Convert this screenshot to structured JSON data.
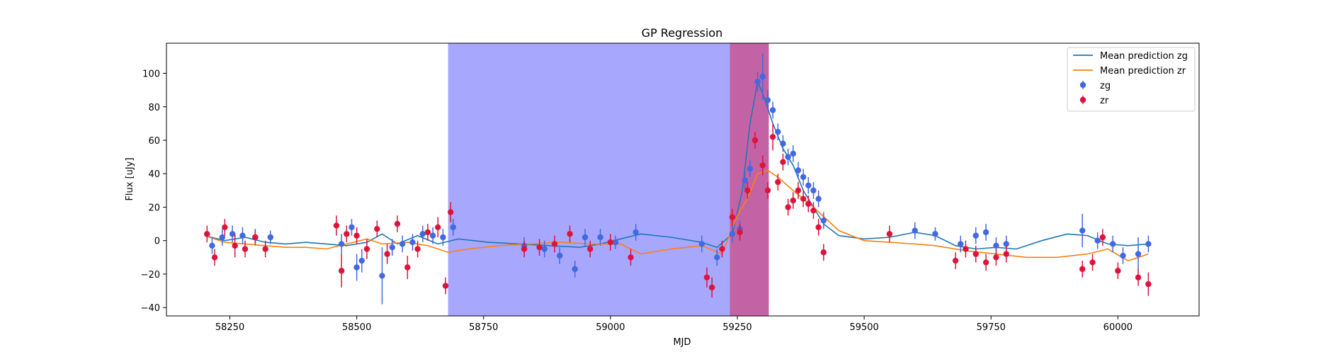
{
  "chart_data": {
    "type": "scatter",
    "title": "GP Regression",
    "xlabel": "MJD",
    "ylabel": "Flux [uJy]",
    "xlim": [
      58125,
      60160
    ],
    "ylim": [
      -45,
      118
    ],
    "xticks": [
      58250,
      58500,
      58750,
      59000,
      59250,
      59500,
      59750,
      60000
    ],
    "yticks": [
      -40,
      -20,
      0,
      20,
      40,
      60,
      80,
      100
    ],
    "grid": false,
    "legend_position": "top-right",
    "shaded_regions": [
      {
        "x_start": 58680,
        "x_end": 59235,
        "color": "#a7a7fd"
      },
      {
        "x_start": 59235,
        "x_end": 59312,
        "color": "#c363a5"
      }
    ],
    "series": [
      {
        "name": "Mean prediction zg",
        "kind": "line",
        "color": "#1f77b4",
        "x": [
          58200,
          58240,
          58280,
          58320,
          58360,
          58400,
          58440,
          58480,
          58520,
          58550,
          58580,
          58620,
          58660,
          58700,
          58760,
          58820,
          58880,
          58940,
          58980,
          59020,
          59060,
          59120,
          59180,
          59210,
          59240,
          59260,
          59275,
          59290,
          59300,
          59320,
          59340,
          59360,
          59380,
          59400,
          59420,
          59450,
          59500,
          59550,
          59600,
          59640,
          59680,
          59720,
          59760,
          59800,
          59850,
          59900,
          59940,
          59980,
          60020,
          60060
        ],
        "y": [
          3,
          0,
          2,
          -1,
          -2,
          -1,
          -2,
          -3,
          -1,
          4,
          -2,
          3,
          -2,
          1,
          -1,
          -2,
          -3,
          -4,
          -2,
          1,
          4,
          2,
          -1,
          -4,
          4,
          30,
          70,
          95,
          88,
          70,
          55,
          45,
          30,
          20,
          10,
          3,
          1,
          2,
          5,
          3,
          -3,
          -5,
          -4,
          -5,
          0,
          4,
          3,
          -2,
          -3,
          -2
        ]
      },
      {
        "name": "Mean prediction zr",
        "kind": "line",
        "color": "#ff7f0e",
        "x": [
          58200,
          58240,
          58280,
          58320,
          58360,
          58400,
          58440,
          58480,
          58520,
          58550,
          58600,
          58640,
          58680,
          58720,
          58780,
          58840,
          58900,
          58960,
          59020,
          59060,
          59120,
          59180,
          59220,
          59250,
          59270,
          59290,
          59310,
          59330,
          59360,
          59400,
          59450,
          59500,
          59550,
          59600,
          59640,
          59700,
          59760,
          59820,
          59880,
          59940,
          59980,
          60020,
          60060
        ],
        "y": [
          3,
          -1,
          -2,
          -3,
          -4,
          -4,
          -5,
          -2,
          1,
          -2,
          -1,
          -3,
          -7,
          -5,
          -3,
          -2,
          -1,
          -2,
          -2,
          -8,
          -5,
          -3,
          -8,
          15,
          25,
          40,
          42,
          38,
          30,
          20,
          6,
          0,
          -1,
          -2,
          -3,
          -6,
          -8,
          -10,
          -10,
          -8,
          -5,
          -12,
          -8
        ]
      },
      {
        "name": "zg",
        "kind": "errorbar",
        "color": "#4169e1",
        "x": [
          58215,
          58235,
          58255,
          58275,
          58300,
          58330,
          58470,
          58490,
          58500,
          58510,
          58550,
          58570,
          58590,
          58610,
          58630,
          58650,
          58670,
          58690,
          58830,
          58870,
          58900,
          58930,
          58950,
          58980,
          59010,
          59050,
          59180,
          59210,
          59240,
          59255,
          59265,
          59275,
          59290,
          59300,
          59310,
          59320,
          59330,
          59340,
          59350,
          59360,
          59370,
          59380,
          59390,
          59400,
          59410,
          59420,
          59600,
          59640,
          59690,
          59720,
          59740,
          59760,
          59780,
          59930,
          59960,
          59990,
          60010,
          60040,
          60060
        ],
        "y": [
          -3,
          2,
          4,
          3,
          2,
          2,
          -2,
          8,
          -16,
          -12,
          -21,
          -4,
          -2,
          -1,
          4,
          3,
          2,
          8,
          -3,
          -5,
          -9,
          -17,
          2,
          2,
          -1,
          5,
          -2,
          -10,
          4,
          7,
          36,
          43,
          95,
          98,
          84,
          78,
          65,
          58,
          50,
          52,
          42,
          38,
          33,
          30,
          25,
          12,
          6,
          4,
          -2,
          3,
          5,
          -3,
          -2,
          6,
          0,
          -2,
          -9,
          -8,
          -2
        ],
        "yerr": [
          5,
          5,
          5,
          5,
          5,
          4,
          6,
          5,
          8,
          7,
          17,
          5,
          5,
          5,
          5,
          5,
          5,
          5,
          5,
          5,
          5,
          5,
          5,
          5,
          4,
          5,
          5,
          5,
          5,
          5,
          5,
          5,
          6,
          14,
          6,
          5,
          5,
          5,
          5,
          5,
          5,
          5,
          5,
          5,
          5,
          5,
          5,
          4,
          5,
          5,
          5,
          5,
          5,
          10,
          5,
          5,
          5,
          10,
          5
        ]
      },
      {
        "name": "zr",
        "kind": "errorbar",
        "color": "#dc143c",
        "x": [
          58205,
          58220,
          58240,
          58260,
          58280,
          58300,
          58320,
          58460,
          58470,
          58480,
          58500,
          58520,
          58540,
          58560,
          58580,
          58600,
          58620,
          58640,
          58660,
          58675,
          58685,
          58830,
          58860,
          58890,
          58920,
          58960,
          59000,
          59040,
          59190,
          59200,
          59220,
          59240,
          59255,
          59270,
          59285,
          59300,
          59310,
          59320,
          59330,
          59340,
          59350,
          59360,
          59370,
          59380,
          59390,
          59400,
          59410,
          59420,
          59550,
          59680,
          59700,
          59720,
          59740,
          59760,
          59780,
          59930,
          59950,
          59970,
          60000,
          60040,
          60060
        ],
        "y": [
          4,
          -10,
          8,
          -3,
          -5,
          2,
          -5,
          9,
          -18,
          4,
          3,
          -5,
          7,
          -8,
          10,
          -16,
          -5,
          5,
          8,
          -27,
          17,
          -5,
          -4,
          -2,
          4,
          -5,
          -1,
          -10,
          -22,
          -28,
          -5,
          14,
          5,
          30,
          60,
          45,
          30,
          62,
          35,
          47,
          20,
          24,
          30,
          25,
          22,
          18,
          8,
          -7,
          4,
          -12,
          -5,
          -8,
          -13,
          -10,
          -8,
          -17,
          -13,
          2,
          -18,
          -22,
          -26
        ],
        "yerr": [
          5,
          5,
          5,
          7,
          5,
          4,
          5,
          6,
          10,
          5,
          5,
          6,
          5,
          6,
          5,
          7,
          5,
          5,
          6,
          5,
          6,
          5,
          5,
          5,
          5,
          5,
          5,
          5,
          6,
          6,
          5,
          5,
          5,
          5,
          5,
          6,
          5,
          8,
          5,
          5,
          5,
          5,
          5,
          5,
          5,
          5,
          5,
          5,
          5,
          5,
          5,
          5,
          5,
          5,
          5,
          5,
          5,
          5,
          5,
          5,
          7
        ]
      }
    ]
  }
}
